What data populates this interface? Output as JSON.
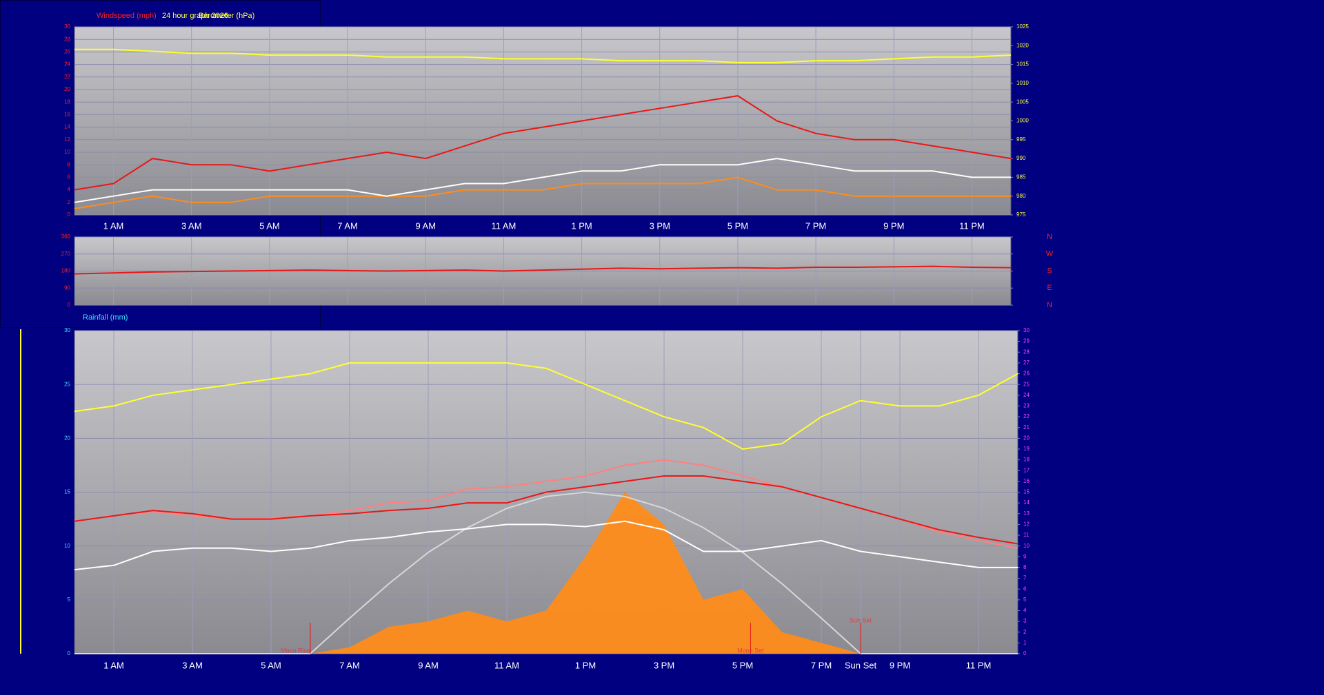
{
  "chart_data": [
    {
      "type": "line",
      "title": "24 hour graph 2026",
      "y_label": "Windspeed (mph)",
      "y2_label": "Barometer (hPa)",
      "ytick_color": "#ff2020",
      "y2tick_color": "#ffff40",
      "x": [
        0,
        1,
        2,
        3,
        4,
        5,
        6,
        7,
        8,
        9,
        10,
        11,
        12,
        13,
        14,
        15,
        16,
        17,
        18,
        19,
        20,
        21,
        22,
        23,
        24
      ],
      "xlim": [
        0,
        24
      ],
      "xticks": [
        {
          "value": 1,
          "label": "1 AM"
        },
        {
          "value": 3,
          "label": "3 AM"
        },
        {
          "value": 5,
          "label": "5 AM"
        },
        {
          "value": 7,
          "label": "7 AM"
        },
        {
          "value": 9,
          "label": "9 AM"
        },
        {
          "value": 11,
          "label": "11 AM"
        },
        {
          "value": 13,
          "label": "1 PM"
        },
        {
          "value": 15,
          "label": "3 PM"
        },
        {
          "value": 17,
          "label": "5 PM"
        },
        {
          "value": 19,
          "label": "7 PM"
        },
        {
          "value": 21,
          "label": "9 PM"
        },
        {
          "value": 23,
          "label": "11 PM"
        }
      ],
      "ylim": [
        0,
        30
      ],
      "yticks": [
        0,
        2,
        4,
        6,
        8,
        10,
        12,
        14,
        16,
        18,
        20,
        22,
        24,
        26,
        28,
        30
      ],
      "y2lim": [
        975,
        1025
      ],
      "y2ticks": [
        975,
        980,
        985,
        990,
        995,
        1000,
        1005,
        1010,
        1015,
        1020,
        1025
      ],
      "grid": true,
      "series": [
        {
          "color": "#ff8c1a",
          "values": [
            1,
            2,
            3,
            2,
            2,
            3,
            3,
            3,
            3,
            3,
            4,
            4,
            4,
            5,
            5,
            5,
            5,
            6,
            4,
            4,
            3,
            3,
            3,
            3,
            3
          ]
        },
        {
          "color": "#e81818",
          "values": [
            4,
            5,
            9,
            8,
            8,
            7,
            8,
            9,
            10,
            9,
            11,
            13,
            14,
            15,
            16,
            17,
            18,
            19,
            15,
            13,
            12,
            12,
            11,
            10,
            9
          ]
        },
        {
          "color": "#ffffff",
          "values": [
            2,
            3,
            4,
            4,
            4,
            4,
            4,
            4,
            3,
            4,
            5,
            5,
            6,
            7,
            7,
            8,
            8,
            8,
            9,
            8,
            7,
            7,
            7,
            6,
            6
          ]
        },
        {
          "color": "#ffff30",
          "axis": "y2",
          "values": [
            1019,
            1019,
            1018.5,
            1018,
            1018,
            1017.5,
            1017.5,
            1017.5,
            1017,
            1017,
            1017,
            1016.5,
            1016.5,
            1016.5,
            1016,
            1016,
            1016,
            1015.5,
            1015.5,
            1016,
            1016,
            1016.5,
            1017,
            1017,
            1017.5
          ]
        }
      ]
    },
    {
      "type": "line",
      "ytick_color": "#ff2020",
      "y2tick_color": "#ff2020",
      "x": [
        0,
        1,
        2,
        3,
        4,
        5,
        6,
        7,
        8,
        9,
        10,
        11,
        12,
        13,
        14,
        15,
        16,
        17,
        18,
        19,
        20,
        21,
        22,
        23,
        24
      ],
      "xlim": [
        0,
        24
      ],
      "xticks": [
        1,
        3,
        5,
        7,
        9,
        11,
        13,
        15,
        17,
        19,
        21,
        23
      ],
      "ylim": [
        0,
        360
      ],
      "yticks": [
        0,
        90,
        180,
        270,
        360
      ],
      "y2lim": [
        0,
        360
      ],
      "y2ticks": [
        {
          "value": 0,
          "label": "N"
        },
        {
          "value": 90,
          "label": "E"
        },
        {
          "value": 180,
          "label": "S"
        },
        {
          "value": 270,
          "label": "W"
        },
        {
          "value": 360,
          "label": "N"
        }
      ],
      "grid": true,
      "series": [
        {
          "color": "#e81818",
          "values": [
            165,
            170,
            175,
            178,
            180,
            182,
            185,
            182,
            180,
            182,
            185,
            180,
            185,
            190,
            195,
            192,
            195,
            198,
            195,
            200,
            200,
            202,
            205,
            200,
            198
          ]
        }
      ]
    },
    {
      "type": "line",
      "y_label": "Rainfall (mm)",
      "ytick_color": "#40e0ff",
      "y2tick_color": "#ff40ff",
      "x": [
        0,
        1,
        2,
        3,
        4,
        5,
        6,
        7,
        8,
        9,
        10,
        11,
        12,
        13,
        14,
        15,
        16,
        17,
        18,
        19,
        20,
        21,
        22,
        23,
        24
      ],
      "xlim": [
        0,
        24
      ],
      "xticks": [
        {
          "value": 1,
          "label": "1 AM"
        },
        {
          "value": 3,
          "label": "3 AM"
        },
        {
          "value": 5,
          "label": "5 AM"
        },
        {
          "value": 7,
          "label": "7 AM"
        },
        {
          "value": 9,
          "label": "9 AM"
        },
        {
          "value": 11,
          "label": "11 AM"
        },
        {
          "value": 13,
          "label": "1 PM"
        },
        {
          "value": 15,
          "label": "3 PM"
        },
        {
          "value": 17,
          "label": "5 PM"
        },
        {
          "value": 19,
          "label": "7 PM"
        },
        {
          "value": 20,
          "label": "Sun Set"
        },
        {
          "value": 21,
          "label": "9 PM"
        },
        {
          "value": 23,
          "label": "11 PM"
        }
      ],
      "ylim": [
        0,
        30
      ],
      "yticks": [
        0,
        5,
        10,
        15,
        20,
        25,
        30
      ],
      "y2lim": [
        0,
        30
      ],
      "y2ticks": [
        0,
        1,
        2,
        3,
        4,
        5,
        6,
        7,
        8,
        9,
        10,
        11,
        12,
        13,
        14,
        15,
        16,
        17,
        18,
        19,
        20,
        21,
        22,
        23,
        24,
        25,
        26,
        27,
        28,
        29,
        30
      ],
      "grid": true,
      "annotations": [
        {
          "text": "Moon Rise",
          "x": 6
        },
        {
          "text": "Moon Set",
          "x": 17.2
        },
        {
          "text": "Sun Set",
          "x": 20
        }
      ],
      "series": [
        {
          "color": "#ff8c1a",
          "area": true,
          "values": [
            0,
            0,
            0,
            0,
            0,
            0,
            0,
            0.6,
            2.5,
            3,
            4,
            3,
            4,
            9,
            15,
            12,
            5,
            6,
            2,
            1,
            0,
            0,
            0,
            0,
            0
          ]
        },
        {
          "color": "#d8d8d8",
          "values": [
            0,
            0,
            0,
            0,
            0,
            0,
            0,
            3.3,
            6.5,
            9.4,
            11.7,
            13.5,
            14.6,
            15,
            14.6,
            13.5,
            11.7,
            9.4,
            6.5,
            3.3,
            0,
            0,
            0,
            0,
            0
          ]
        },
        {
          "color": "#ffff30",
          "values": [
            22.5,
            23,
            24,
            24.5,
            25,
            25.5,
            26,
            27,
            27,
            27,
            27,
            27,
            26.5,
            25,
            23.5,
            22,
            21,
            19,
            19.5,
            22,
            23.5,
            23,
            23,
            24,
            26
          ]
        },
        {
          "color": "#ff8080",
          "values": [
            12.3,
            12.8,
            13.2,
            12.8,
            12.5,
            12.6,
            12.8,
            13.3,
            14,
            14.2,
            15.3,
            15.5,
            16,
            16.5,
            17.5,
            18,
            17.5,
            16.5,
            15.5,
            14.5,
            13.5,
            12.5,
            11.3,
            10.5,
            9.8
          ]
        },
        {
          "color": "#e81818",
          "values": [
            12.3,
            12.8,
            13.3,
            13,
            12.5,
            12.5,
            12.8,
            13,
            13.3,
            13.5,
            14,
            14,
            15,
            15.5,
            16,
            16.5,
            16.5,
            16,
            15.5,
            14.5,
            13.5,
            12.5,
            11.5,
            10.8,
            10.2
          ]
        },
        {
          "color": "#ffffff",
          "values": [
            7.8,
            8.2,
            9.5,
            9.8,
            9.8,
            9.5,
            9.8,
            10.5,
            10.8,
            11.3,
            11.6,
            12,
            12,
            11.8,
            12.3,
            11.5,
            9.5,
            9.5,
            10,
            10.5,
            9.5,
            9,
            8.5,
            8,
            8
          ]
        }
      ]
    }
  ]
}
